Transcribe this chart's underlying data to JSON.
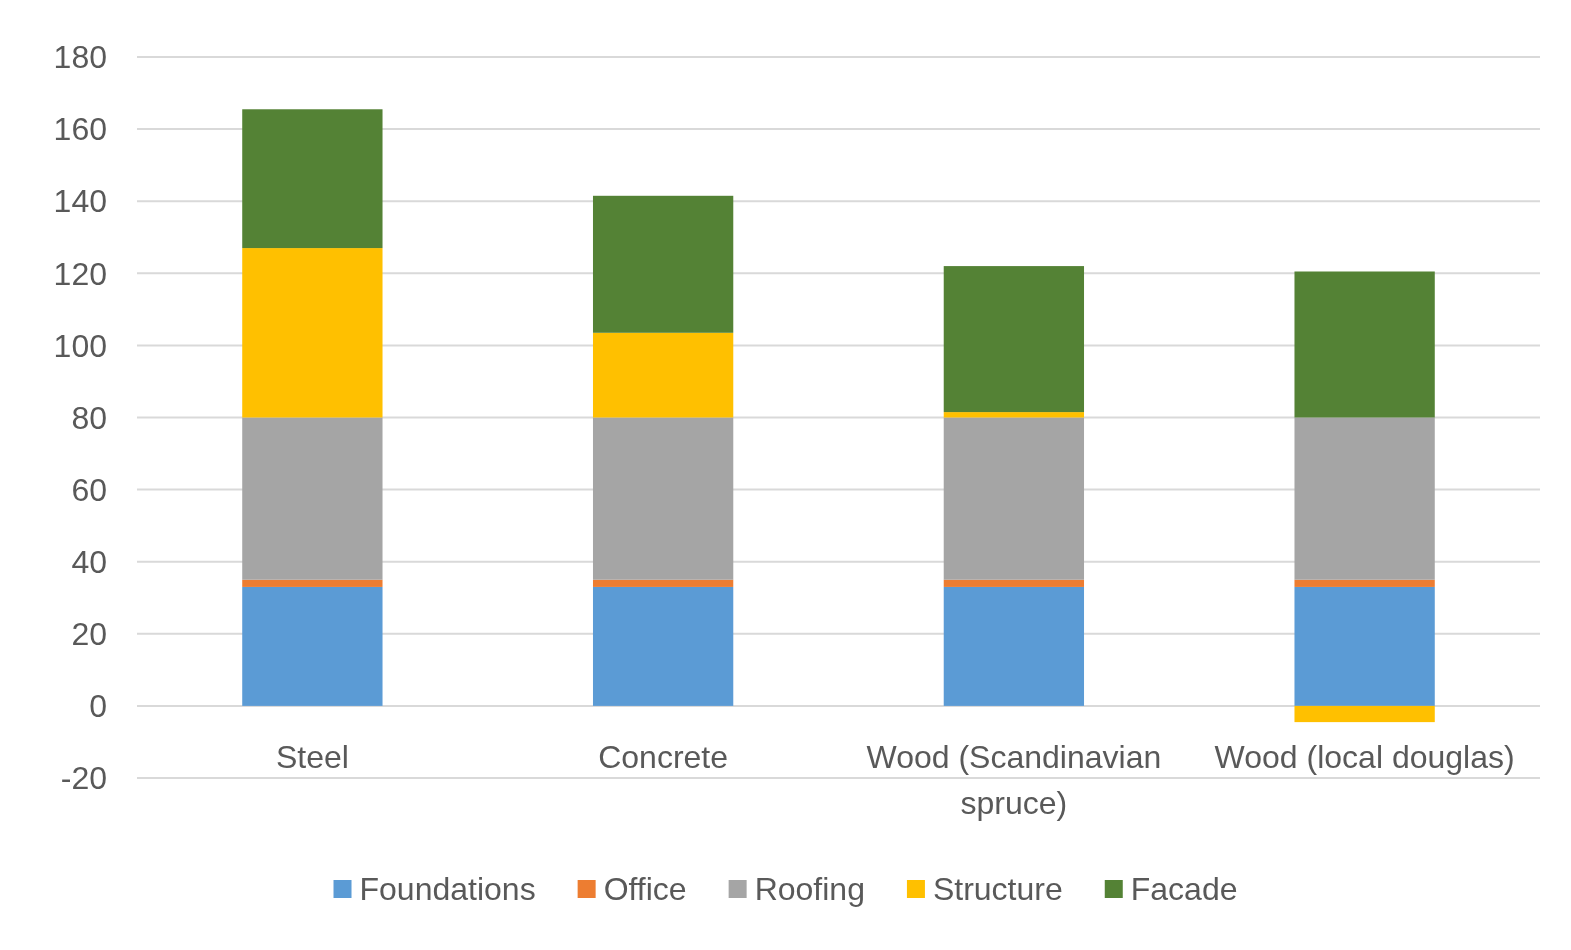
{
  "chart_data": {
    "type": "bar",
    "stacked": true,
    "categories": [
      "Steel",
      "Concrete",
      "Wood (Scandinavian spruce)",
      "Wood (local douglas)"
    ],
    "series": [
      {
        "name": "Foundations",
        "color": "#5b9bd5",
        "values": [
          33,
          33,
          33,
          33
        ]
      },
      {
        "name": "Office",
        "color": "#ed7d31",
        "values": [
          2,
          2,
          2,
          2
        ]
      },
      {
        "name": "Roofing",
        "color": "#a5a5a5",
        "values": [
          45,
          45,
          45,
          45
        ]
      },
      {
        "name": "Structure",
        "color": "#ffc000",
        "values": [
          47,
          23.5,
          1.5,
          -4.5
        ]
      },
      {
        "name": "Facade",
        "color": "#548235",
        "values": [
          38.5,
          38,
          40.5,
          40.5
        ]
      }
    ],
    "ylim": [
      -20,
      180
    ],
    "yticks": [
      -20,
      0,
      20,
      40,
      60,
      80,
      100,
      120,
      140,
      160,
      180
    ],
    "grid": "y",
    "legend": "bottom"
  }
}
